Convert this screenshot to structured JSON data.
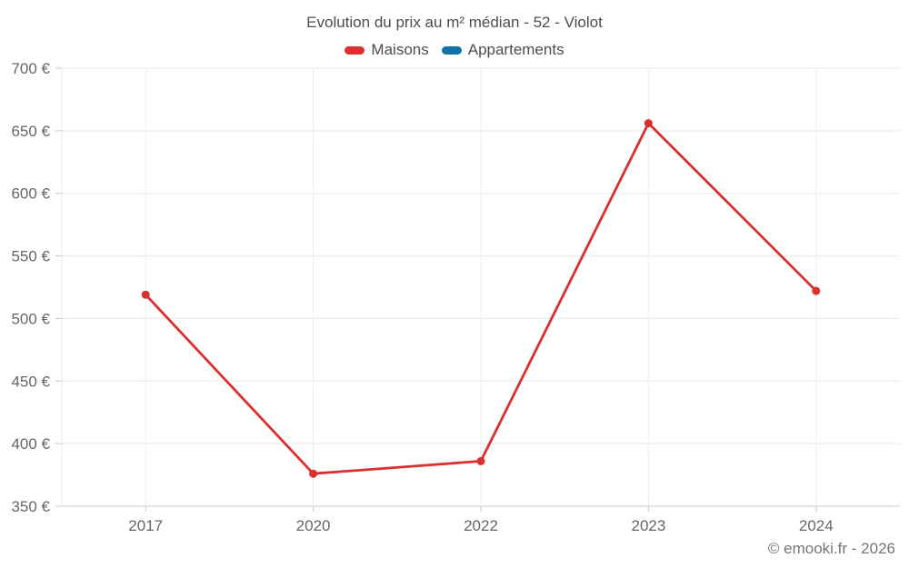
{
  "title": "Evolution du prix au m² médian - 52 - Violot",
  "footer": "© emooki.fr - 2026",
  "colors": {
    "maisons": "#dc2f2f",
    "appartements": "#1272a5",
    "grid": "#e8e8e8",
    "grid_vertical": "#ededed",
    "axis_line": "#c9c9c9",
    "tick": "#c9c9c9",
    "axis_label": "#666666",
    "title_text": "#4d4d4d"
  },
  "chart_data": {
    "type": "line",
    "title": "Evolution du prix au m² médian - 52 - Violot",
    "categories": [
      "2017",
      "2020",
      "2022",
      "2023",
      "2024"
    ],
    "series": [
      {
        "name": "Maisons",
        "color": "#dc2f2f",
        "values": [
          519,
          376,
          386,
          656,
          522
        ]
      },
      {
        "name": "Appartements",
        "color": "#1272a5",
        "values": []
      }
    ],
    "xlabel": "",
    "ylabel": "",
    "ylim": [
      350,
      700
    ],
    "ytick_step": 50,
    "ytick_suffix": " €",
    "grid": true,
    "legend_position": "top",
    "marker_radius": 4.5,
    "line_width": 2.8
  }
}
